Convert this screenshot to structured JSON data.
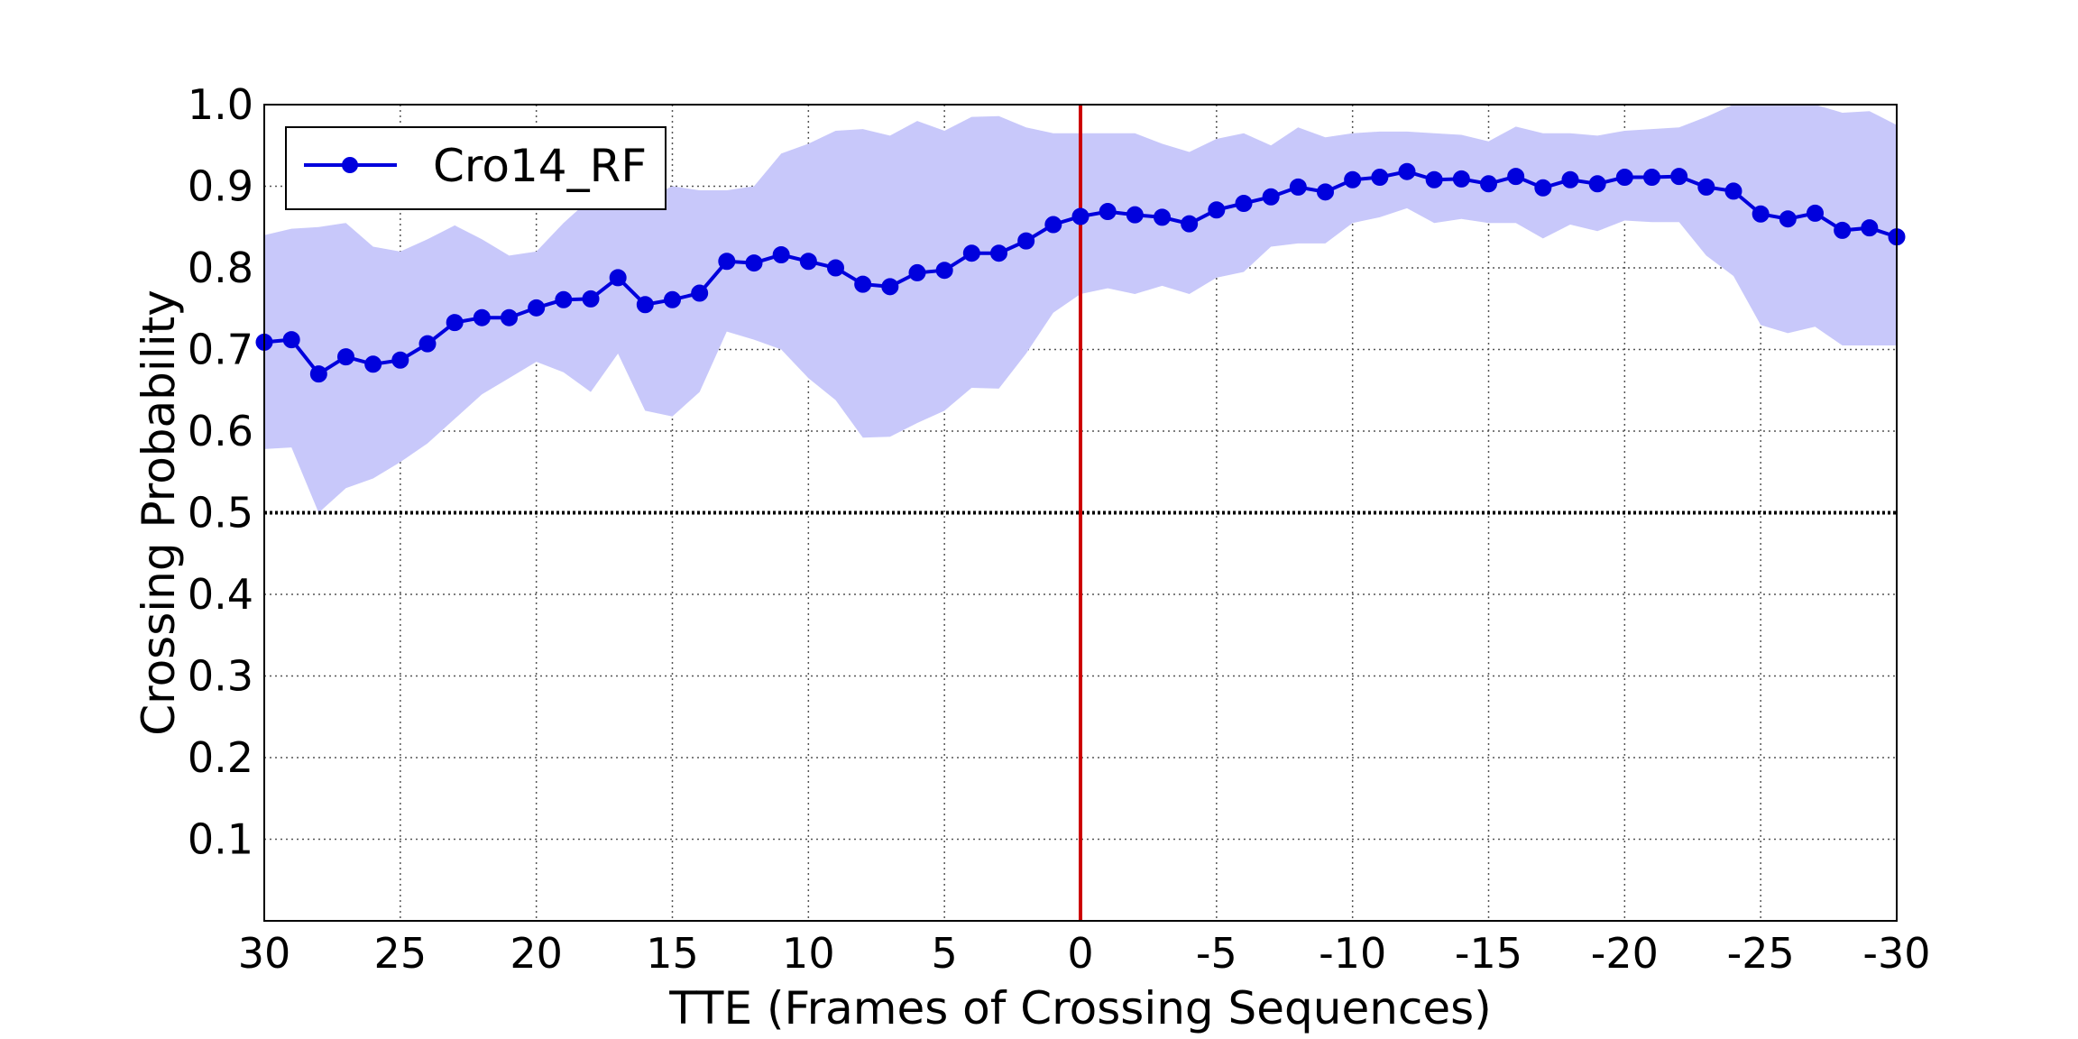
{
  "chart_data": {
    "type": "line",
    "title": "",
    "xlabel": "TTE (Frames of Crossing Sequences)",
    "ylabel": "Crossing Probability",
    "xlim": [
      30,
      -30
    ],
    "ylim": [
      0.0,
      1.0
    ],
    "x_ticks": [
      30,
      25,
      20,
      15,
      10,
      5,
      0,
      -5,
      -10,
      -15,
      -20,
      -25,
      -30
    ],
    "x_tick_labels": [
      "30",
      "25",
      "20",
      "15",
      "10",
      "5",
      "0",
      "-5",
      "-10",
      "-15",
      "-20",
      "-25",
      "-30"
    ],
    "y_ticks": [
      0.1,
      0.2,
      0.3,
      0.4,
      0.5,
      0.6,
      0.7,
      0.8,
      0.9,
      1.0
    ],
    "y_tick_labels": [
      "0.1",
      "0.2",
      "0.3",
      "0.4",
      "0.5",
      "0.6",
      "0.7",
      "0.8",
      "0.9",
      "1.0"
    ],
    "grid": true,
    "legend_position": "top-left",
    "reference_lines": [
      {
        "axis": "y",
        "value": 0.5,
        "style": "dotted",
        "color": "#000000"
      },
      {
        "axis": "x",
        "value": 0,
        "style": "solid",
        "color": "#cc0000"
      }
    ],
    "x": [
      30,
      29,
      28,
      27,
      26,
      25,
      24,
      23,
      22,
      21,
      20,
      19,
      18,
      17,
      16,
      15,
      14,
      13,
      12,
      11,
      10,
      9,
      8,
      7,
      6,
      5,
      4,
      3,
      2,
      1,
      0,
      -1,
      -2,
      -3,
      -4,
      -5,
      -6,
      -7,
      -8,
      -9,
      -10,
      -11,
      -12,
      -13,
      -14,
      -15,
      -16,
      -17,
      -18,
      -19,
      -20,
      -21,
      -22,
      -23,
      -24,
      -25,
      -26,
      -27,
      -28,
      -29,
      -30
    ],
    "series": [
      {
        "name": "Cro14_RF",
        "color": "#0000dd",
        "marker": "circle",
        "values": [
          0.709,
          0.712,
          0.67,
          0.691,
          0.682,
          0.687,
          0.707,
          0.733,
          0.739,
          0.739,
          0.751,
          0.761,
          0.762,
          0.788,
          0.755,
          0.761,
          0.769,
          0.808,
          0.806,
          0.816,
          0.808,
          0.8,
          0.78,
          0.777,
          0.794,
          0.797,
          0.818,
          0.818,
          0.833,
          0.853,
          0.863,
          0.869,
          0.865,
          0.862,
          0.854,
          0.871,
          0.879,
          0.887,
          0.899,
          0.893,
          0.908,
          0.911,
          0.918,
          0.908,
          0.909,
          0.903,
          0.912,
          0.898,
          0.908,
          0.903,
          0.911,
          0.911,
          0.912,
          0.899,
          0.894,
          0.866,
          0.86,
          0.867,
          0.846,
          0.849,
          0.838
        ],
        "band_upper": [
          0.84,
          0.848,
          0.85,
          0.855,
          0.826,
          0.82,
          0.835,
          0.852,
          0.835,
          0.815,
          0.82,
          0.855,
          0.885,
          0.9,
          0.885,
          0.9,
          0.895,
          0.895,
          0.9,
          0.94,
          0.952,
          0.968,
          0.97,
          0.962,
          0.98,
          0.968,
          0.985,
          0.986,
          0.972,
          0.965,
          0.965,
          0.965,
          0.965,
          0.952,
          0.942,
          0.958,
          0.965,
          0.95,
          0.972,
          0.96,
          0.965,
          0.967,
          0.967,
          0.965,
          0.963,
          0.955,
          0.973,
          0.965,
          0.965,
          0.962,
          0.968,
          0.97,
          0.972,
          0.985,
          1.0,
          1.0,
          1.0,
          1.0,
          0.99,
          0.992,
          0.975
        ],
        "band_lower": [
          0.578,
          0.58,
          0.5,
          0.53,
          0.542,
          0.562,
          0.585,
          0.615,
          0.645,
          0.665,
          0.685,
          0.672,
          0.648,
          0.695,
          0.625,
          0.618,
          0.648,
          0.722,
          0.712,
          0.7,
          0.665,
          0.638,
          0.592,
          0.593,
          0.61,
          0.625,
          0.653,
          0.652,
          0.695,
          0.745,
          0.768,
          0.775,
          0.768,
          0.778,
          0.768,
          0.788,
          0.795,
          0.826,
          0.83,
          0.83,
          0.855,
          0.862,
          0.873,
          0.855,
          0.86,
          0.855,
          0.855,
          0.836,
          0.853,
          0.845,
          0.858,
          0.856,
          0.856,
          0.815,
          0.79,
          0.73,
          0.72,
          0.728,
          0.705,
          0.705,
          0.705
        ]
      }
    ]
  }
}
